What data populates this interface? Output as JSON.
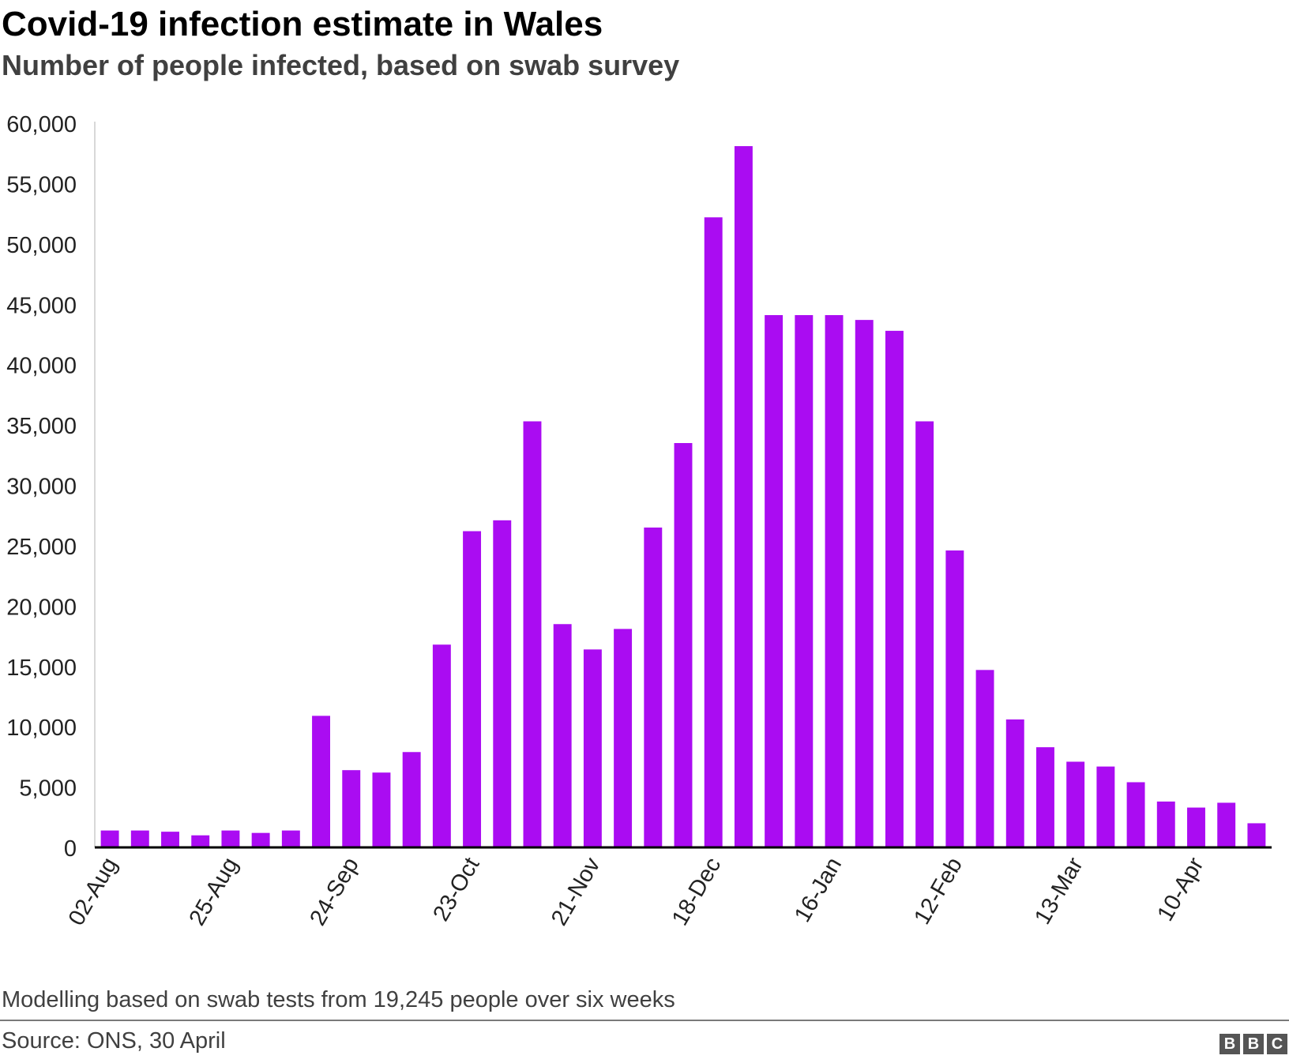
{
  "header": {
    "title": "Covid-19 infection estimate in Wales",
    "subtitle": "Number of people infected, based on swab survey"
  },
  "footer": {
    "note": "Modelling based on swab tests from 19,245 people over six weeks",
    "source": "Source: ONS, 30 April",
    "logo_letters": [
      "B",
      "B",
      "C"
    ]
  },
  "colors": {
    "bar": "#aa0cf2",
    "axis": "#000000",
    "y_axis_line": "#cccccc"
  },
  "chart_data": {
    "type": "bar",
    "title": "Covid-19 infection estimate in Wales",
    "subtitle": "Number of people infected, based on swab survey",
    "xlabel": "",
    "ylabel": "",
    "ylim": [
      0,
      60000
    ],
    "yticks": [
      0,
      5000,
      10000,
      15000,
      20000,
      25000,
      30000,
      35000,
      40000,
      45000,
      50000,
      55000,
      60000
    ],
    "ytick_labels": [
      "0",
      "5,000",
      "10,000",
      "15,000",
      "20,000",
      "25,000",
      "30,000",
      "35,000",
      "40,000",
      "45,000",
      "50,000",
      "55,000",
      "60,000"
    ],
    "grid": false,
    "xtick_labels": [
      {
        "index": 0,
        "label": "02-Aug"
      },
      {
        "index": 4,
        "label": "25-Aug"
      },
      {
        "index": 8,
        "label": "24-Sep"
      },
      {
        "index": 12,
        "label": "23-Oct"
      },
      {
        "index": 16,
        "label": "21-Nov"
      },
      {
        "index": 20,
        "label": "18-Dec"
      },
      {
        "index": 24,
        "label": "16-Jan"
      },
      {
        "index": 28,
        "label": "12-Feb"
      },
      {
        "index": 32,
        "label": "13-Mar"
      },
      {
        "index": 36,
        "label": "10-Apr"
      }
    ],
    "values": [
      1400,
      1400,
      1300,
      1000,
      1400,
      1200,
      1400,
      10900,
      6400,
      6200,
      7900,
      16800,
      26200,
      27100,
      35300,
      18500,
      16400,
      18100,
      26500,
      33500,
      52200,
      58100,
      44100,
      44100,
      44100,
      43700,
      42800,
      35300,
      24600,
      14700,
      10600,
      8300,
      7100,
      6700,
      5400,
      3800,
      3300,
      3700,
      2000
    ]
  }
}
